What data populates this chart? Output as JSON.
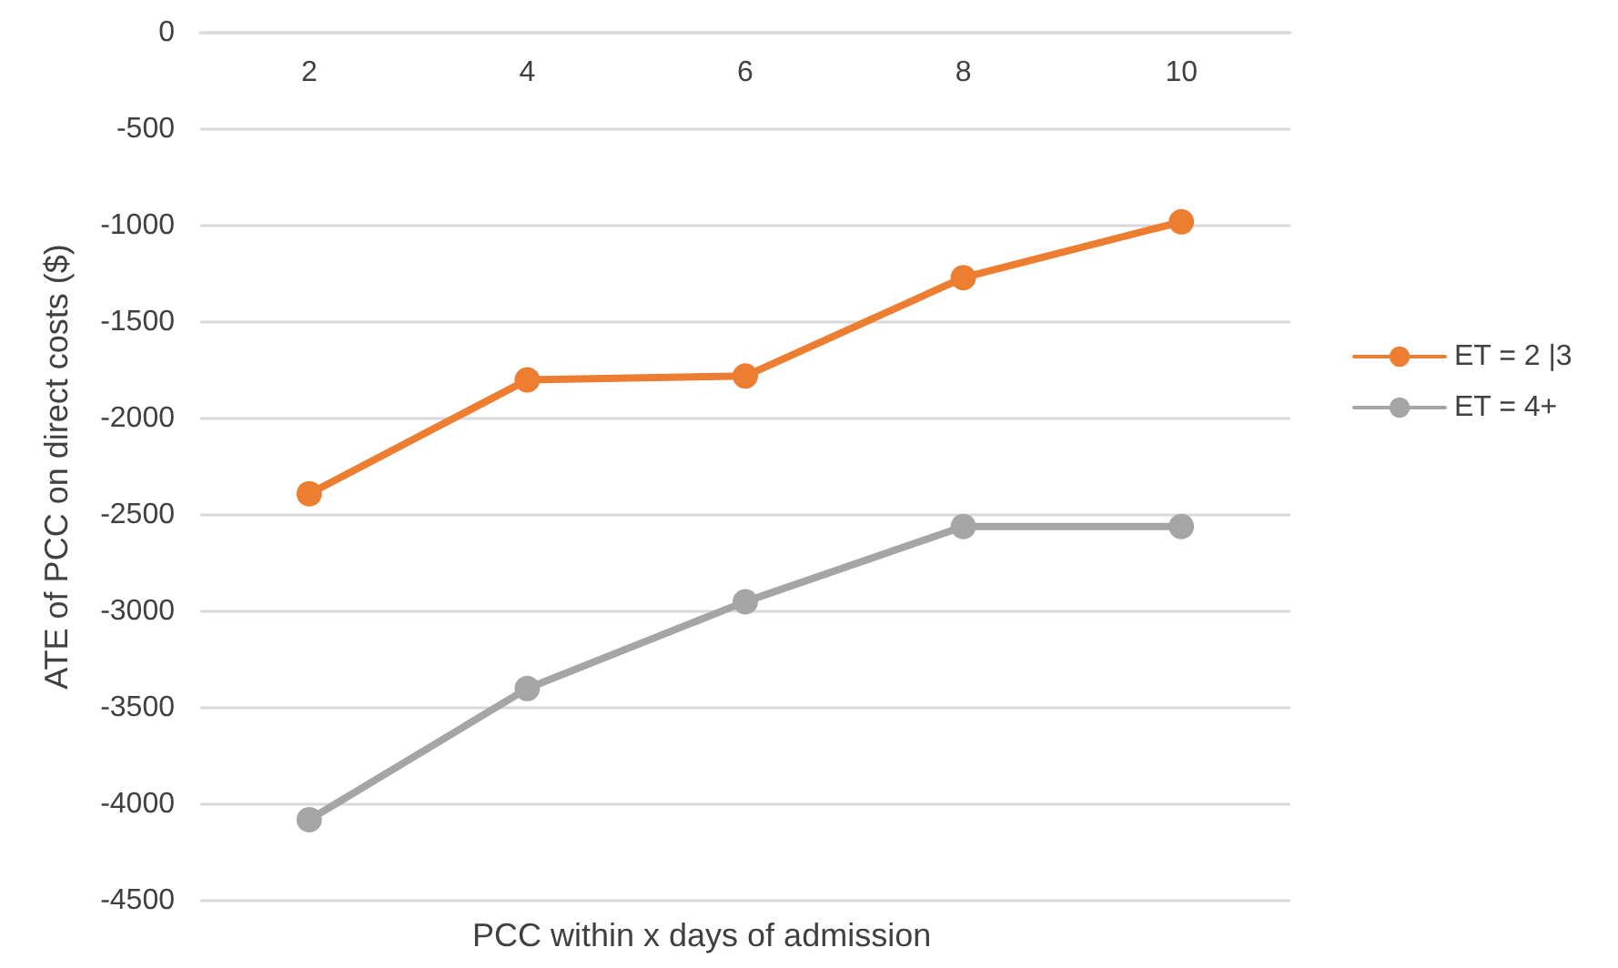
{
  "chart_data": {
    "type": "line",
    "xlabel": "PCC within x days of admission",
    "ylabel": "ATE of PCC on direct costs ($)",
    "categories": [
      "2",
      "4",
      "6",
      "8",
      "10"
    ],
    "series": [
      {
        "name": "ET = 2 |3",
        "color": "#ed7d31",
        "values": [
          -2390,
          -1800,
          -1780,
          -1270,
          -980
        ]
      },
      {
        "name": "ET = 4+",
        "color": "#a5a5a5",
        "values": [
          -4080,
          -3400,
          -2950,
          -2560,
          -2560
        ]
      }
    ],
    "ylim": [
      -4500,
      0
    ],
    "yticks": [
      -4500,
      -4000,
      -3500,
      -3000,
      -2500,
      -2000,
      -1500,
      -1000,
      -500,
      0
    ],
    "grid": "y",
    "legend": "right",
    "marker": "circle",
    "line_style": "solid"
  }
}
